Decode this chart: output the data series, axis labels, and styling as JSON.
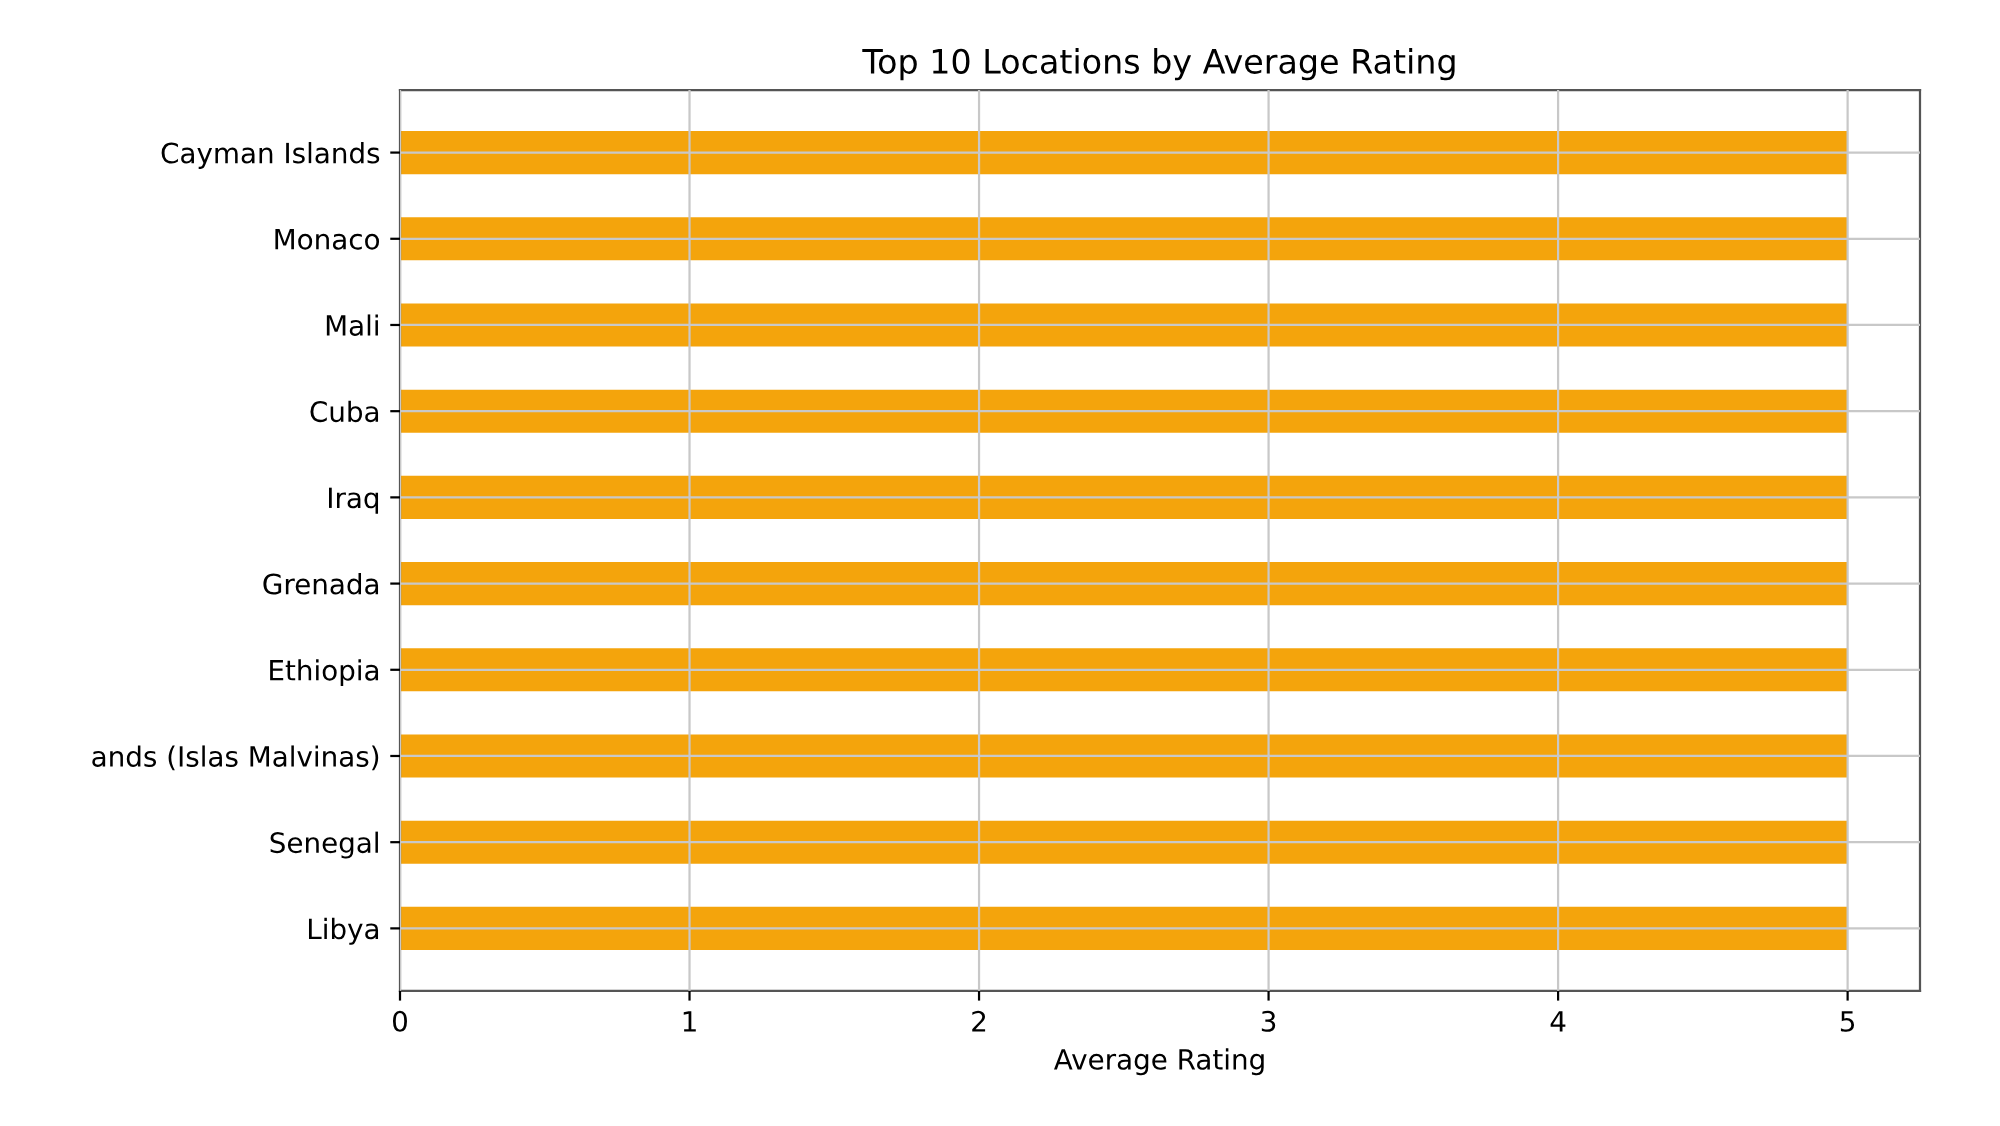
{
  "chart_data": {
    "type": "bar",
    "orientation": "horizontal",
    "title": "Top 10 Locations by Average Rating",
    "xlabel": "Average Rating",
    "categories": [
      "Cayman Islands",
      "Monaco",
      "Mali",
      "Cuba",
      "Iraq",
      "Grenada",
      "Ethiopia",
      "ands (Islas Malvinas)",
      "Senegal",
      "Libya"
    ],
    "values": [
      5,
      5,
      5,
      5,
      5,
      5,
      5,
      5,
      5,
      5
    ],
    "color": "#f4a40c",
    "xlim": [
      0,
      5.25
    ],
    "xticks": [
      0,
      1,
      2,
      3,
      4,
      5
    ],
    "grid": true
  }
}
